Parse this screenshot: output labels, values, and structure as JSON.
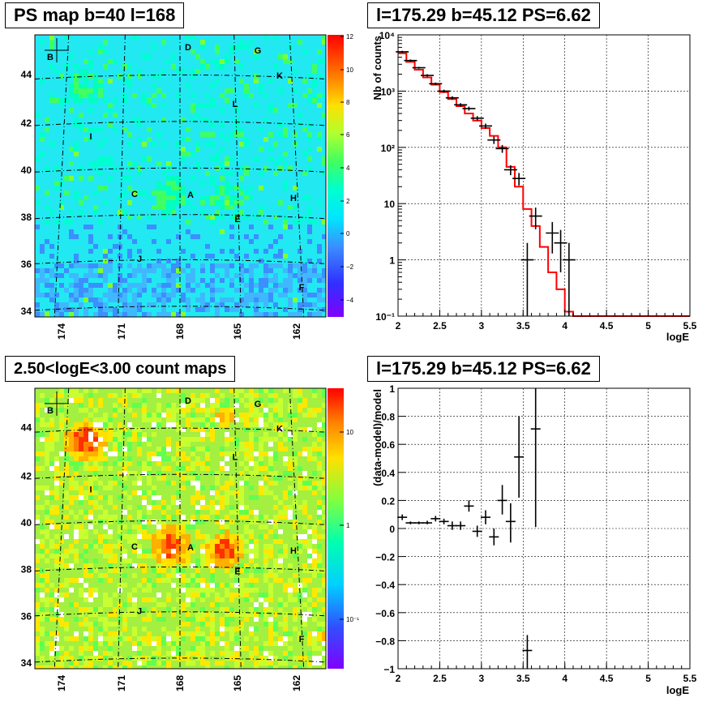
{
  "panels": {
    "ps_map_title": "PS map b=40 l=168",
    "spectrum_title": "l=175.29 b=45.12 PS=6.62",
    "count_map_title": "2.50<logE<3.00 count maps",
    "residual_title": "l=175.29 b=45.12 PS=6.62"
  },
  "maps": {
    "lon_labels": [
      "174",
      "171",
      "168",
      "165",
      "162"
    ],
    "lat_labels": [
      "44",
      "42",
      "40",
      "38",
      "36",
      "34"
    ],
    "sources": [
      "B",
      "D",
      "G",
      "K",
      "L",
      "I",
      "C",
      "A",
      "H",
      "E",
      "J",
      "F"
    ],
    "ps_colorbar_labels": [
      "12",
      "10",
      "8",
      "6",
      "4",
      "2",
      "0",
      "−2",
      "−4"
    ],
    "count_colorbar_labels": [
      "10",
      "1",
      "10⁻¹"
    ]
  },
  "chart_data": [
    {
      "type": "line",
      "panel": "spectrum",
      "title": "l=175.29 b=45.12 PS=6.62",
      "xlabel": "logE",
      "ylabel": "Nb of counts",
      "xlim": [
        2,
        5.5
      ],
      "ylim": [
        0.1,
        10000
      ],
      "yscale": "log",
      "grid": true,
      "x_ticks": [
        "2",
        "2.5",
        "3",
        "3.5",
        "4",
        "4.5",
        "5",
        "5.5"
      ],
      "y_ticks": [
        "10⁻¹",
        "1",
        "10",
        "10²",
        "10³",
        "10⁴"
      ],
      "data_points": [
        {
          "x": 2.05,
          "y": 5000,
          "ylo": 4800,
          "yhi": 5200
        },
        {
          "x": 2.15,
          "y": 3500,
          "ylo": 3350,
          "yhi": 3650
        },
        {
          "x": 2.25,
          "y": 2600,
          "ylo": 2500,
          "yhi": 2700
        },
        {
          "x": 2.35,
          "y": 1900,
          "ylo": 1800,
          "yhi": 2000
        },
        {
          "x": 2.45,
          "y": 1350,
          "ylo": 1280,
          "yhi": 1420
        },
        {
          "x": 2.55,
          "y": 1000,
          "ylo": 940,
          "yhi": 1060
        },
        {
          "x": 2.65,
          "y": 760,
          "ylo": 710,
          "yhi": 810
        },
        {
          "x": 2.75,
          "y": 570,
          "ylo": 530,
          "yhi": 610
        },
        {
          "x": 2.85,
          "y": 490,
          "ylo": 450,
          "yhi": 530
        },
        {
          "x": 2.95,
          "y": 330,
          "ylo": 300,
          "yhi": 360
        },
        {
          "x": 3.05,
          "y": 240,
          "ylo": 215,
          "yhi": 265
        },
        {
          "x": 3.15,
          "y": 135,
          "ylo": 115,
          "yhi": 155
        },
        {
          "x": 3.25,
          "y": 95,
          "ylo": 80,
          "yhi": 110
        },
        {
          "x": 3.35,
          "y": 40,
          "ylo": 32,
          "yhi": 48
        },
        {
          "x": 3.45,
          "y": 28,
          "ylo": 21,
          "yhi": 35
        },
        {
          "x": 3.55,
          "y": 1,
          "ylo": 0.1,
          "yhi": 2
        },
        {
          "x": 3.65,
          "y": 6,
          "ylo": 3.5,
          "yhi": 8.5
        },
        {
          "x": 3.85,
          "y": 3,
          "ylo": 1.3,
          "yhi": 4.7
        },
        {
          "x": 3.95,
          "y": 2,
          "ylo": 0.6,
          "yhi": 3.4
        },
        {
          "x": 4.05,
          "y": 1,
          "ylo": 0.1,
          "yhi": 2
        }
      ],
      "model": {
        "edges": [
          2.0,
          2.1,
          2.2,
          2.3,
          2.4,
          2.5,
          2.6,
          2.7,
          2.8,
          2.9,
          3.0,
          3.1,
          3.2,
          3.3,
          3.4,
          3.5,
          3.6,
          3.7,
          3.8,
          3.9,
          4.0,
          4.1,
          5.5
        ],
        "values": [
          4700,
          3300,
          2400,
          1750,
          1300,
          960,
          720,
          540,
          400,
          300,
          220,
          160,
          100,
          45,
          20,
          8,
          4,
          1.7,
          0.6,
          0.3,
          0.12,
          0.1
        ]
      }
    },
    {
      "type": "scatter",
      "panel": "residual",
      "title": "l=175.29 b=45.12 PS=6.62",
      "xlabel": "logE",
      "ylabel": "(data-model)/model",
      "xlim": [
        2,
        5.5
      ],
      "ylim": [
        -1,
        1
      ],
      "grid": true,
      "x_ticks": [
        "2",
        "2.5",
        "3",
        "3.5",
        "4",
        "4.5",
        "5",
        "5.5"
      ],
      "y_ticks": [
        "−1",
        "−0.8",
        "−0.6",
        "−0.4",
        "−0.2",
        "0",
        "0.2",
        "0.4",
        "0.6",
        "0.8",
        "1"
      ],
      "points": [
        {
          "x": 2.05,
          "y": 0.08,
          "ylo": 0.06,
          "yhi": 0.1
        },
        {
          "x": 2.15,
          "y": 0.04,
          "ylo": 0.03,
          "yhi": 0.05
        },
        {
          "x": 2.25,
          "y": 0.04,
          "ylo": 0.03,
          "yhi": 0.05
        },
        {
          "x": 2.35,
          "y": 0.04,
          "ylo": 0.03,
          "yhi": 0.055
        },
        {
          "x": 2.45,
          "y": 0.07,
          "ylo": 0.05,
          "yhi": 0.09
        },
        {
          "x": 2.55,
          "y": 0.05,
          "ylo": 0.03,
          "yhi": 0.07
        },
        {
          "x": 2.65,
          "y": 0.02,
          "ylo": -0.01,
          "yhi": 0.05
        },
        {
          "x": 2.75,
          "y": 0.02,
          "ylo": -0.01,
          "yhi": 0.05
        },
        {
          "x": 2.85,
          "y": 0.16,
          "ylo": 0.12,
          "yhi": 0.2
        },
        {
          "x": 2.95,
          "y": -0.02,
          "ylo": -0.06,
          "yhi": 0.02
        },
        {
          "x": 3.05,
          "y": 0.08,
          "ylo": 0.03,
          "yhi": 0.13
        },
        {
          "x": 3.15,
          "y": -0.06,
          "ylo": -0.12,
          "yhi": 0.0
        },
        {
          "x": 3.25,
          "y": 0.2,
          "ylo": 0.1,
          "yhi": 0.31
        },
        {
          "x": 3.35,
          "y": 0.05,
          "ylo": -0.1,
          "yhi": 0.18
        },
        {
          "x": 3.45,
          "y": 0.51,
          "ylo": 0.22,
          "yhi": 0.8
        },
        {
          "x": 3.55,
          "y": -0.87,
          "ylo": -1.0,
          "yhi": -0.76
        },
        {
          "x": 3.65,
          "y": 0.71,
          "ylo": 0.01,
          "yhi": 1.0
        }
      ]
    }
  ]
}
